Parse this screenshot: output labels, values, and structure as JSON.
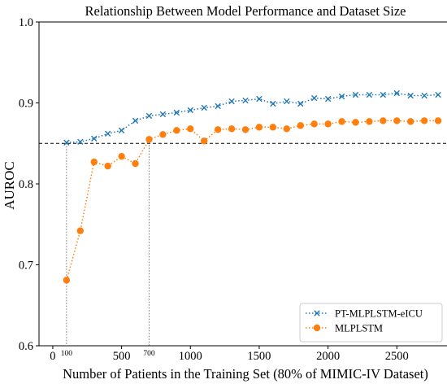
{
  "chart_data": {
    "type": "line",
    "title": "Relationship Between Model Performance and Dataset Size",
    "xlabel": "Number of Patients in the Training Set (80% of MIMIC-IV Dataset)",
    "ylabel": "AUROC",
    "xlim": [
      -100,
      2900
    ],
    "ylim": [
      0.6,
      1.0
    ],
    "xticks": [
      0,
      500,
      1000,
      1500,
      2000,
      2500
    ],
    "yticks": [
      0.6,
      0.7,
      0.8,
      0.9,
      1.0
    ],
    "ytick_labels": [
      "0.6",
      "0.7",
      "0.8",
      "0.9",
      "1.0"
    ],
    "extra_xtick_labels": [
      {
        "value": 100,
        "label": "100"
      },
      {
        "value": 700,
        "label": "700"
      }
    ],
    "reference_line": {
      "y": 0.85,
      "style": "dashed",
      "color": "#000000"
    },
    "vertical_guides": [
      {
        "x": 100,
        "y_top": 0.85
      },
      {
        "x": 700,
        "y_top": 0.855
      }
    ],
    "grid": false,
    "legend_position": "lower-right",
    "series": [
      {
        "name": "PT-MLPLSTM-eICU",
        "color": "#1f77b4",
        "marker": "x",
        "line_style": "dotted",
        "x": [
          100,
          200,
          300,
          400,
          500,
          600,
          700,
          800,
          900,
          1000,
          1100,
          1200,
          1300,
          1400,
          1500,
          1600,
          1700,
          1800,
          1900,
          2000,
          2100,
          2200,
          2300,
          2400,
          2500,
          2600,
          2700,
          2800
        ],
        "y": [
          0.851,
          0.852,
          0.856,
          0.862,
          0.866,
          0.878,
          0.884,
          0.886,
          0.888,
          0.891,
          0.894,
          0.896,
          0.902,
          0.903,
          0.905,
          0.899,
          0.902,
          0.899,
          0.906,
          0.905,
          0.908,
          0.91,
          0.91,
          0.91,
          0.912,
          0.909,
          0.909,
          0.91
        ]
      },
      {
        "name": "MLPLSTM",
        "color": "#ff7f0e",
        "marker": "o",
        "line_style": "dotted",
        "x": [
          100,
          200,
          300,
          400,
          500,
          600,
          700,
          800,
          900,
          1000,
          1100,
          1200,
          1300,
          1400,
          1500,
          1600,
          1700,
          1800,
          1900,
          2000,
          2100,
          2200,
          2300,
          2400,
          2500,
          2600,
          2700,
          2800
        ],
        "y": [
          0.681,
          0.742,
          0.827,
          0.822,
          0.834,
          0.825,
          0.855,
          0.861,
          0.866,
          0.868,
          0.853,
          0.867,
          0.868,
          0.867,
          0.87,
          0.87,
          0.868,
          0.872,
          0.874,
          0.874,
          0.877,
          0.876,
          0.877,
          0.878,
          0.878,
          0.877,
          0.878,
          0.878
        ]
      }
    ]
  }
}
